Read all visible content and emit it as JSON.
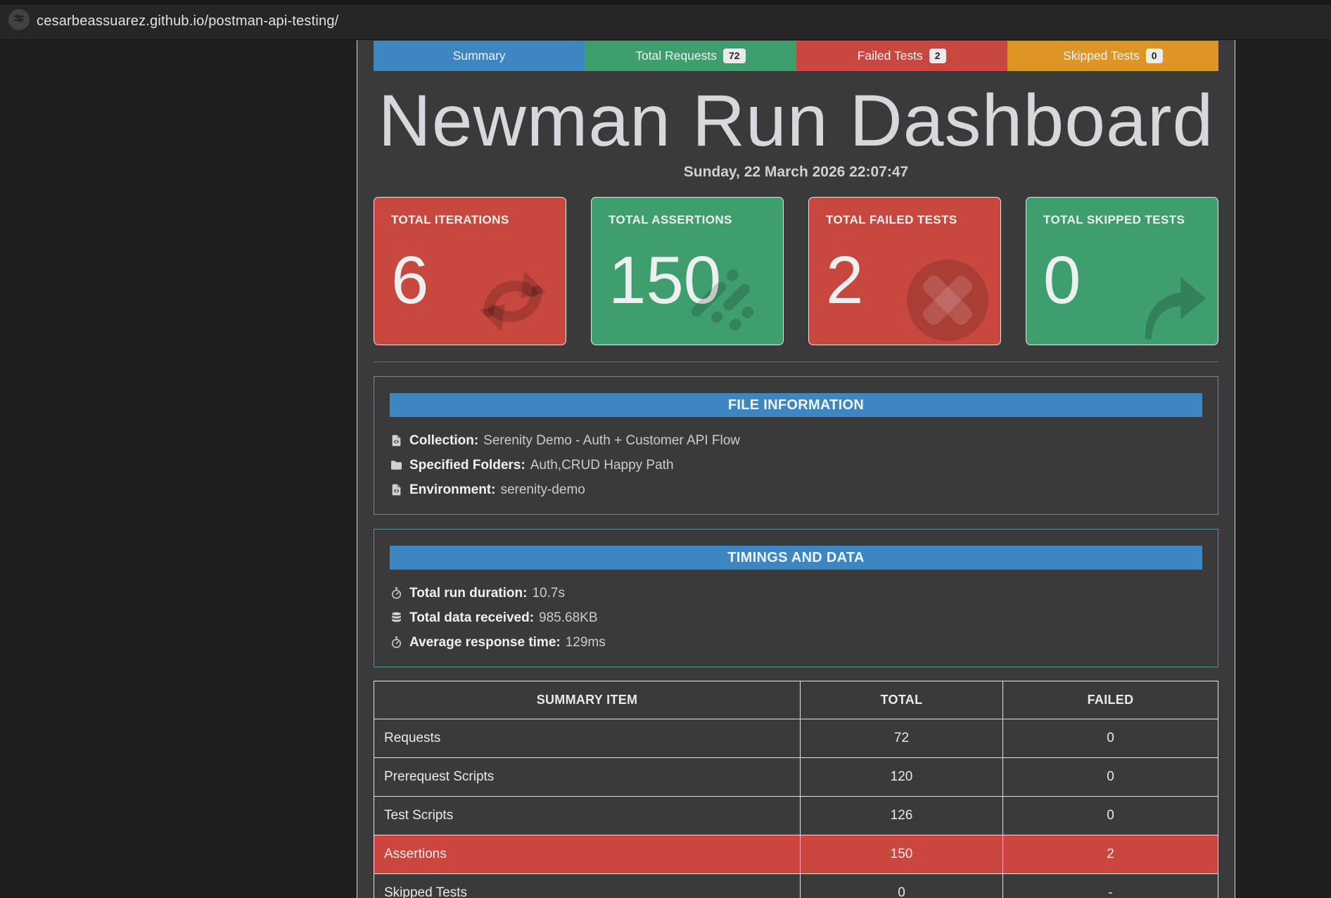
{
  "browser": {
    "url": "cesarbeassuarez.github.io/postman-api-testing/"
  },
  "tabs": [
    {
      "label": "Summary",
      "badge": "",
      "color": "#3e86c2"
    },
    {
      "label": "Total Requests",
      "badge": "72",
      "color": "#3f9e6e"
    },
    {
      "label": "Failed Tests",
      "badge": "2",
      "color": "#c8483f"
    },
    {
      "label": "Skipped Tests",
      "badge": "0",
      "color": "#dd9526"
    }
  ],
  "header": {
    "title": "Newman Run Dashboard",
    "date": "Sunday, 22 March 2026 22:07:47"
  },
  "stat_cards": [
    {
      "label": "TOTAL ITERATIONS",
      "value": "6",
      "color": "#c8483f",
      "icon": "repeat-arrows-icon"
    },
    {
      "label": "TOTAL ASSERTIONS",
      "value": "150",
      "color": "#3f9e6e",
      "icon": "meteor-dashes-icon"
    },
    {
      "label": "TOTAL FAILED TESTS",
      "value": "2",
      "color": "#c8483f",
      "icon": "x-circle-icon"
    },
    {
      "label": "TOTAL SKIPPED TESTS",
      "value": "0",
      "color": "#3f9e6e",
      "icon": "curved-arrow-icon"
    }
  ],
  "file_information": {
    "header": "FILE INFORMATION",
    "rows": [
      {
        "icon": "file-code-icon",
        "label": "Collection:",
        "value": "Serenity Demo - Auth + Customer API Flow"
      },
      {
        "icon": "folder-icon",
        "label": "Specified Folders:",
        "value": "Auth,CRUD Happy Path"
      },
      {
        "icon": "file-code-icon",
        "label": "Environment:",
        "value": "serenity-demo"
      }
    ]
  },
  "timings": {
    "header": "TIMINGS AND DATA",
    "rows": [
      {
        "icon": "stopwatch-icon",
        "label": "Total run duration:",
        "value": "10.7s"
      },
      {
        "icon": "database-icon",
        "label": "Total data received:",
        "value": "985.68KB"
      },
      {
        "icon": "stopwatch-icon",
        "label": "Average response time:",
        "value": "129ms"
      }
    ]
  },
  "summary_table": {
    "columns": [
      "SUMMARY ITEM",
      "TOTAL",
      "FAILED"
    ],
    "rows": [
      {
        "item": "Requests",
        "total": "72",
        "failed": "0",
        "highlight": false
      },
      {
        "item": "Prerequest Scripts",
        "total": "120",
        "failed": "0",
        "highlight": false
      },
      {
        "item": "Test Scripts",
        "total": "126",
        "failed": "0",
        "highlight": false
      },
      {
        "item": "Assertions",
        "total": "150",
        "failed": "2",
        "highlight": true
      },
      {
        "item": "Skipped Tests",
        "total": "0",
        "failed": "-",
        "highlight": false
      }
    ]
  },
  "colors": {
    "accent_blue": "#3e86c2",
    "accent_green": "#3f9e6e",
    "accent_red": "#c8483f",
    "accent_orange": "#dd9526",
    "panel_border_teal": "#459aa3",
    "page_background": "#3a3a3a",
    "chrome_background": "#262626"
  }
}
